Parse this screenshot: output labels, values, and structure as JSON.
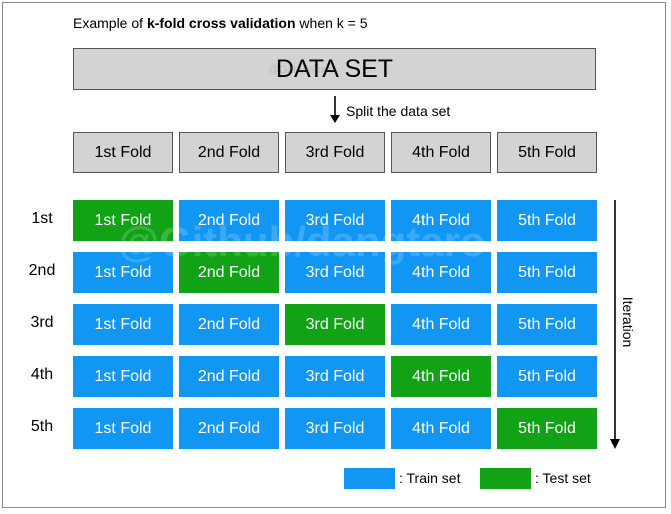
{
  "header": {
    "prefix": "Example of ",
    "bold": "k-fold cross validation",
    "suffix": " when k = 5"
  },
  "dataset_label": "DATA SET",
  "watermark_small": "@Github/xxxx",
  "split_label": "Split the data set",
  "folds": [
    "1st Fold",
    "2nd Fold",
    "3rd Fold",
    "4th Fold",
    "5th Fold"
  ],
  "iterations": [
    {
      "label": "1st",
      "test_index": 0
    },
    {
      "label": "2nd",
      "test_index": 1
    },
    {
      "label": "3rd",
      "test_index": 2
    },
    {
      "label": "4th",
      "test_index": 3
    },
    {
      "label": "5th",
      "test_index": 4
    }
  ],
  "iteration_axis_label": "Iteration",
  "watermark": "@Github/dangtaro",
  "legend": {
    "train": ": Train set",
    "test": ": Test set"
  },
  "colors": {
    "train": "#1196f3",
    "test": "#12a216",
    "header_fold": "#d3d3d3"
  }
}
